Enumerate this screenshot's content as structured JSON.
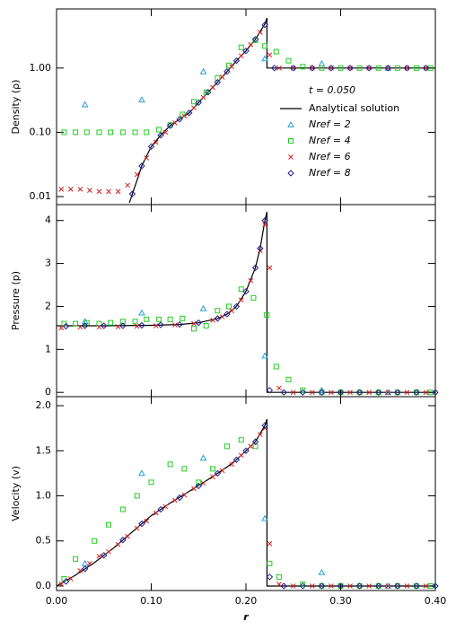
{
  "chart_data": [
    {
      "type": "scatter",
      "log_scale": true,
      "ylabel": "Density (ρ)",
      "annotation": "t = 0.050",
      "legend": "center-right",
      "ylim": [
        0.0075,
        8.3
      ],
      "yticks": [
        {
          "value": 0.01,
          "label": "0.01"
        },
        {
          "value": 0.1,
          "label": "0.10"
        },
        {
          "value": 1,
          "label": "1.00"
        }
      ],
      "series": [
        {
          "name": "Analytical solution",
          "color": "#000000",
          "marker": "line",
          "x": [
            0.077,
            0.08,
            0.085,
            0.09,
            0.1,
            0.11,
            0.12,
            0.13,
            0.14,
            0.15,
            0.16,
            0.17,
            0.18,
            0.19,
            0.2,
            0.21,
            0.22,
            0.2222,
            0.2222,
            0.4
          ],
          "values": [
            0.008,
            0.011,
            0.018,
            0.03,
            0.06,
            0.09,
            0.127,
            0.16,
            0.2,
            0.29,
            0.42,
            0.6,
            0.88,
            1.3,
            1.85,
            2.8,
            4.85,
            6.0,
            1.0,
            1.0
          ]
        },
        {
          "name": "Nref = 2",
          "color": "#2a9ed8",
          "marker": "triangle",
          "x": [
            0.03,
            0.09,
            0.155,
            0.22,
            0.28,
            0.35
          ],
          "values": [
            0.27,
            0.32,
            0.88,
            1.4,
            1.17,
            1.0
          ]
        },
        {
          "name": "Nref = 4",
          "color": "#22cc22",
          "marker": "square",
          "x": [
            0.008,
            0.02,
            0.032,
            0.045,
            0.057,
            0.07,
            0.083,
            0.095,
            0.108,
            0.12,
            0.133,
            0.145,
            0.158,
            0.17,
            0.182,
            0.195,
            0.21,
            0.22,
            0.232,
            0.245,
            0.26,
            0.28,
            0.3,
            0.32,
            0.34,
            0.36,
            0.38,
            0.395
          ],
          "values": [
            0.1,
            0.1,
            0.1,
            0.1,
            0.1,
            0.1,
            0.1,
            0.1,
            0.11,
            0.13,
            0.19,
            0.3,
            0.42,
            0.7,
            1.1,
            2.1,
            2.7,
            2.2,
            1.8,
            1.3,
            1.05,
            1.0,
            1.0,
            1.0,
            1.0,
            1.0,
            1.0,
            1.0
          ]
        },
        {
          "name": "Nref = 6",
          "color": "#d02020",
          "marker": "x",
          "x": [
            0.005,
            0.015,
            0.025,
            0.035,
            0.045,
            0.055,
            0.065,
            0.075,
            0.085,
            0.095,
            0.105,
            0.115,
            0.125,
            0.135,
            0.145,
            0.155,
            0.165,
            0.175,
            0.185,
            0.195,
            0.205,
            0.215,
            0.225,
            0.235,
            0.25,
            0.27,
            0.29,
            0.31,
            0.33,
            0.35,
            0.37,
            0.39
          ],
          "values": [
            0.013,
            0.013,
            0.013,
            0.0125,
            0.012,
            0.012,
            0.012,
            0.015,
            0.022,
            0.04,
            0.07,
            0.1,
            0.14,
            0.18,
            0.24,
            0.35,
            0.5,
            0.72,
            1.05,
            1.55,
            2.3,
            3.6,
            1.6,
            1.0,
            1.0,
            1.0,
            1.0,
            1.0,
            1.0,
            1.0,
            1.0,
            1.0
          ]
        },
        {
          "name": "Nref = 8",
          "color": "#202090",
          "marker": "diamond",
          "x": [
            0.08,
            0.09,
            0.1,
            0.11,
            0.12,
            0.13,
            0.14,
            0.15,
            0.16,
            0.17,
            0.18,
            0.19,
            0.2,
            0.21,
            0.22,
            0.23,
            0.25,
            0.27,
            0.29,
            0.31,
            0.33,
            0.35,
            0.37,
            0.39
          ],
          "values": [
            0.011,
            0.03,
            0.06,
            0.09,
            0.127,
            0.16,
            0.2,
            0.29,
            0.42,
            0.6,
            0.88,
            1.3,
            1.85,
            2.8,
            4.7,
            1.0,
            1.0,
            1.0,
            1.0,
            1.0,
            1.0,
            1.0,
            1.0,
            1.0
          ]
        }
      ]
    },
    {
      "type": "scatter",
      "ylabel": "Pressure (p)",
      "ylim": [
        -0.1,
        4.37
      ],
      "yticks": [
        0,
        1,
        2,
        3,
        4
      ],
      "series": [
        {
          "color": "#000000",
          "marker": "line",
          "x": [
            0,
            0.05,
            0.1,
            0.13,
            0.15,
            0.17,
            0.18,
            0.19,
            0.2,
            0.21,
            0.215,
            0.22,
            0.2222,
            0.2222,
            0.4
          ],
          "values": [
            1.55,
            1.55,
            1.56,
            1.58,
            1.62,
            1.72,
            1.82,
            2.0,
            2.35,
            2.9,
            3.35,
            4.0,
            4.2,
            0,
            0
          ]
        },
        {
          "color": "#2a9ed8",
          "marker": "triangle",
          "x": [
            0.03,
            0.09,
            0.155,
            0.22,
            0.28,
            0.35
          ],
          "values": [
            1.65,
            1.85,
            1.95,
            0.85,
            0.05,
            0
          ]
        },
        {
          "color": "#22cc22",
          "marker": "square",
          "x": [
            0.008,
            0.02,
            0.032,
            0.045,
            0.057,
            0.07,
            0.083,
            0.095,
            0.108,
            0.12,
            0.133,
            0.145,
            0.158,
            0.17,
            0.182,
            0.195,
            0.208,
            0.222,
            0.232,
            0.245,
            0.26,
            0.28,
            0.3,
            0.32,
            0.34,
            0.36,
            0.38,
            0.395
          ],
          "values": [
            1.6,
            1.6,
            1.62,
            1.6,
            1.62,
            1.65,
            1.65,
            1.7,
            1.7,
            1.7,
            1.72,
            1.48,
            1.55,
            1.9,
            2.0,
            2.4,
            2.2,
            1.8,
            0.6,
            0.3,
            0.05,
            0,
            0,
            0,
            0,
            0,
            0,
            0
          ]
        },
        {
          "color": "#d02020",
          "marker": "x",
          "x": [
            0.005,
            0.025,
            0.045,
            0.065,
            0.085,
            0.105,
            0.125,
            0.145,
            0.165,
            0.175,
            0.185,
            0.195,
            0.205,
            0.215,
            0.22,
            0.225,
            0.235,
            0.25,
            0.27,
            0.29,
            0.31,
            0.33,
            0.35,
            0.37,
            0.39
          ],
          "values": [
            1.5,
            1.52,
            1.52,
            1.53,
            1.54,
            1.55,
            1.57,
            1.6,
            1.68,
            1.76,
            1.9,
            2.15,
            2.6,
            3.3,
            3.9,
            2.9,
            0.1,
            0,
            0,
            0,
            0,
            0,
            0,
            0,
            0
          ]
        },
        {
          "color": "#202090",
          "marker": "diamond",
          "x": [
            0.01,
            0.03,
            0.05,
            0.07,
            0.09,
            0.11,
            0.13,
            0.15,
            0.17,
            0.18,
            0.19,
            0.2,
            0.21,
            0.215,
            0.22,
            0.225,
            0.24,
            0.26,
            0.28,
            0.3,
            0.32,
            0.34,
            0.36,
            0.38,
            0.4
          ],
          "values": [
            1.54,
            1.55,
            1.55,
            1.55,
            1.56,
            1.57,
            1.58,
            1.62,
            1.72,
            1.82,
            2.0,
            2.35,
            2.9,
            3.35,
            4.0,
            0.05,
            0,
            0,
            0,
            0,
            0,
            0,
            0,
            0,
            0
          ]
        }
      ]
    },
    {
      "type": "scatter",
      "ylabel": "Velocity (v)",
      "xlabel": "r",
      "xlim": [
        0,
        0.4
      ],
      "xticks": [
        {
          "value": 0,
          "label": "0.00"
        },
        {
          "value": 0.1,
          "label": "0.10"
        },
        {
          "value": 0.2,
          "label": "0.20"
        },
        {
          "value": 0.3,
          "label": "0.30"
        },
        {
          "value": 0.4,
          "label": "0.40"
        }
      ],
      "ylim": [
        -0.05,
        2.1
      ],
      "yticks": [
        {
          "value": 0,
          "label": "0.0"
        },
        0.5,
        {
          "value": 1,
          "label": "1.0"
        },
        1.5,
        {
          "value": 2,
          "label": "2.0"
        }
      ],
      "series": [
        {
          "color": "#000000",
          "marker": "line",
          "x": [
            0,
            0.02,
            0.04,
            0.06,
            0.08,
            0.1,
            0.12,
            0.14,
            0.16,
            0.18,
            0.19,
            0.2,
            0.21,
            0.22,
            0.2222,
            0.2222,
            0.4
          ],
          "values": [
            0,
            0.12,
            0.26,
            0.42,
            0.6,
            0.78,
            0.92,
            1.05,
            1.18,
            1.32,
            1.4,
            1.5,
            1.6,
            1.78,
            1.85,
            0,
            0
          ]
        },
        {
          "color": "#2a9ed8",
          "marker": "triangle",
          "x": [
            0.03,
            0.09,
            0.155,
            0.22,
            0.28,
            0.35
          ],
          "values": [
            0.25,
            1.25,
            1.42,
            0.75,
            0.15,
            0
          ]
        },
        {
          "color": "#22cc22",
          "marker": "square",
          "x": [
            0.008,
            0.02,
            0.04,
            0.055,
            0.07,
            0.085,
            0.1,
            0.12,
            0.135,
            0.15,
            0.165,
            0.18,
            0.195,
            0.21,
            0.225,
            0.235,
            0.26,
            0.28,
            0.3,
            0.32,
            0.34,
            0.36,
            0.38,
            0.395
          ],
          "values": [
            0.08,
            0.3,
            0.5,
            0.68,
            0.85,
            1.0,
            1.15,
            1.35,
            1.3,
            1.15,
            1.3,
            1.55,
            1.62,
            1.55,
            0.25,
            0.1,
            0.02,
            0,
            0,
            0,
            0,
            0,
            0,
            0
          ]
        },
        {
          "color": "#d02020",
          "marker": "x",
          "x": [
            0.005,
            0.015,
            0.025,
            0.035,
            0.045,
            0.055,
            0.065,
            0.075,
            0.085,
            0.095,
            0.105,
            0.115,
            0.125,
            0.135,
            0.145,
            0.155,
            0.165,
            0.175,
            0.185,
            0.195,
            0.205,
            0.215,
            0.22,
            0.225,
            0.235,
            0.25,
            0.27,
            0.29,
            0.31,
            0.33,
            0.35,
            0.37,
            0.39
          ],
          "values": [
            0.02,
            0.08,
            0.17,
            0.25,
            0.33,
            0.38,
            0.46,
            0.55,
            0.64,
            0.72,
            0.81,
            0.88,
            0.95,
            1.01,
            1.08,
            1.14,
            1.21,
            1.28,
            1.35,
            1.45,
            1.55,
            1.68,
            1.75,
            0.47,
            0.02,
            0,
            0,
            0,
            0,
            0,
            0,
            0,
            0
          ]
        },
        {
          "color": "#202090",
          "marker": "diamond",
          "x": [
            0.01,
            0.03,
            0.05,
            0.07,
            0.09,
            0.11,
            0.13,
            0.15,
            0.17,
            0.19,
            0.2,
            0.21,
            0.22,
            0.225,
            0.24,
            0.26,
            0.28,
            0.3,
            0.32,
            0.34,
            0.36,
            0.38,
            0.4
          ],
          "values": [
            0.05,
            0.19,
            0.34,
            0.51,
            0.69,
            0.85,
            0.98,
            1.11,
            1.25,
            1.4,
            1.5,
            1.6,
            1.78,
            0.1,
            0,
            0,
            0,
            0,
            0,
            0,
            0,
            0,
            0
          ]
        }
      ]
    }
  ]
}
